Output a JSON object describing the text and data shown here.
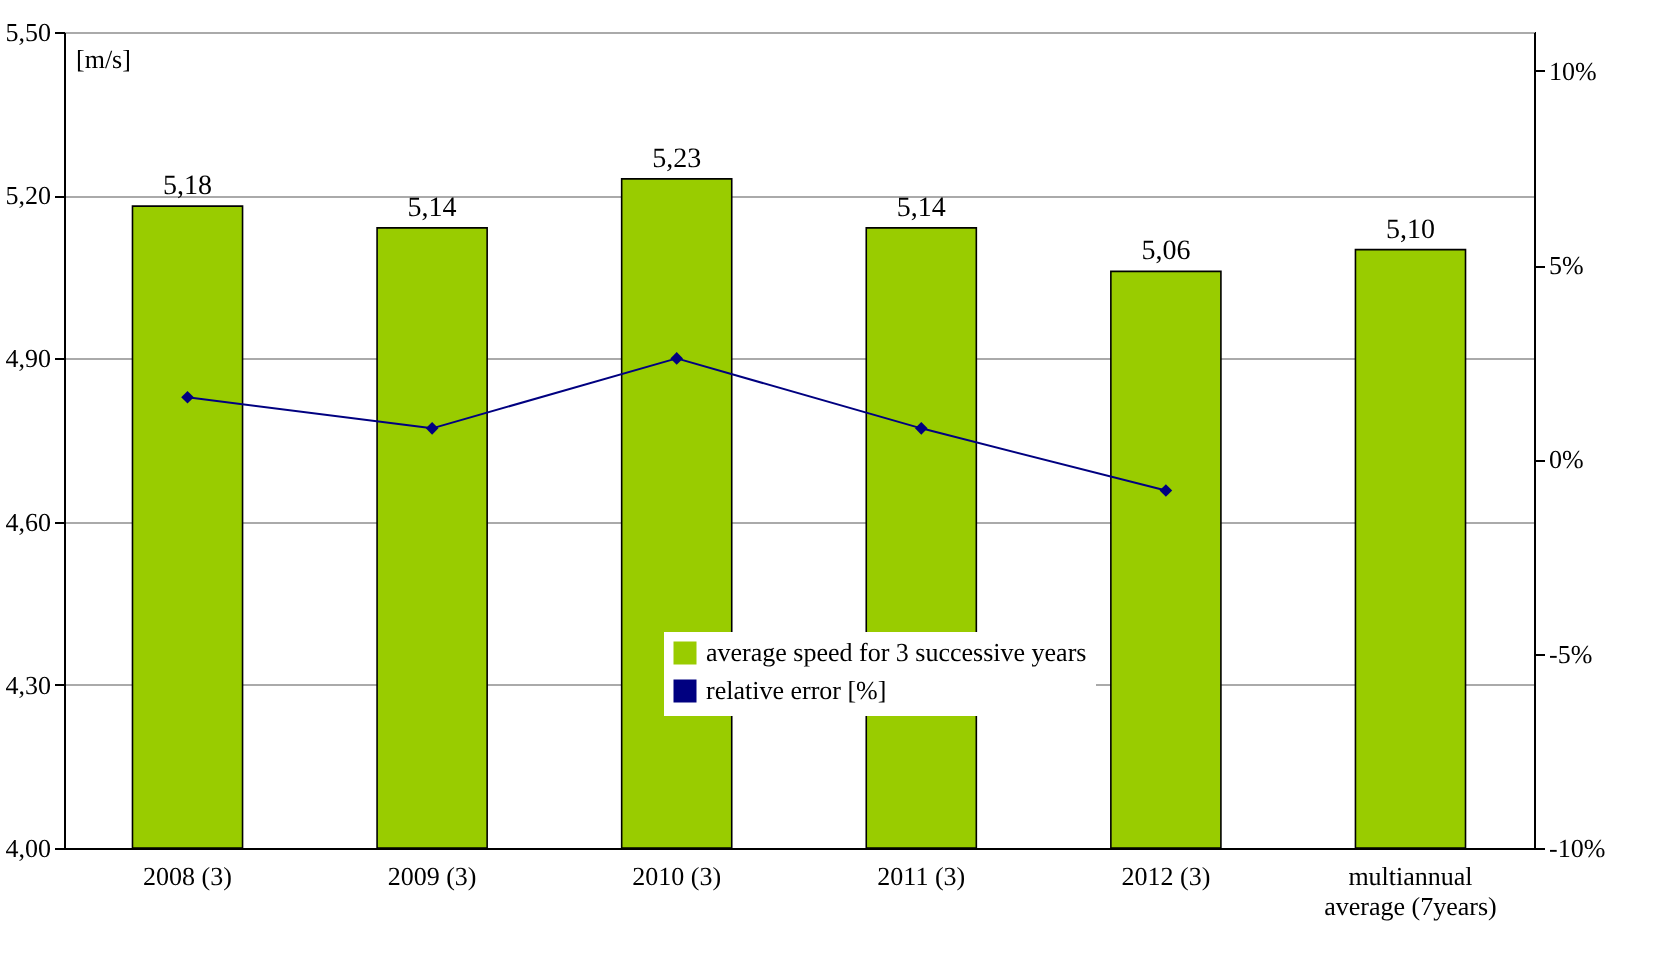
{
  "chart_data": {
    "type": "bar",
    "ylabel": "[m/s]",
    "categories": [
      "2008 (3)",
      "2009 (3)",
      "2010 (3)",
      "2011 (3)",
      "2012 (3)",
      "multiannual average (7years)"
    ],
    "series": [
      {
        "name": "average speed for 3 successive years",
        "color": "#99cc00",
        "values": [
          5.18,
          5.14,
          5.23,
          5.14,
          5.06,
          5.1
        ],
        "value_labels": [
          "5,18",
          "5,14",
          "5,23",
          "5,14",
          "5,06",
          "5,10"
        ]
      },
      {
        "name": "relative error [%]",
        "type": "line",
        "axis": "y2",
        "color": "#000080",
        "marker": "diamond",
        "values": [
          1.6,
          0.8,
          2.6,
          0.8,
          -0.8,
          null
        ]
      }
    ],
    "ylim": [
      4.0,
      5.5
    ],
    "yticks": [
      {
        "value": 4.0,
        "label": "4,00"
      },
      {
        "value": 4.3,
        "label": "4,30"
      },
      {
        "value": 4.6,
        "label": "4,60"
      },
      {
        "value": 4.9,
        "label": "4,90"
      },
      {
        "value": 5.2,
        "label": "5,20"
      },
      {
        "value": 5.5,
        "label": "5,50"
      }
    ],
    "y2lim": [
      -10,
      11
    ],
    "y2ticks": [
      {
        "value": -10,
        "label": "-10%"
      },
      {
        "value": -5,
        "label": "-5%"
      },
      {
        "value": 0,
        "label": "0%"
      },
      {
        "value": 5,
        "label": "5%"
      },
      {
        "value": 10,
        "label": "10%"
      }
    ],
    "grid": "y",
    "legend": "bottom"
  }
}
